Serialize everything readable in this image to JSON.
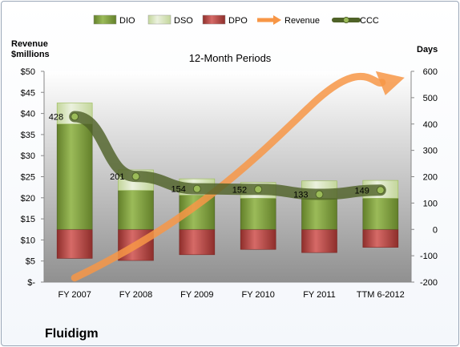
{
  "company": "Fluidigm",
  "chart_data": {
    "type": "bar",
    "title": "12-Month Periods",
    "ylabel_left": [
      "Revenue",
      "$millions"
    ],
    "ylabel_right": "Days",
    "categories": [
      "FY 2007",
      "FY 2008",
      "FY 2009",
      "FY 2010",
      "FY 2011",
      "TTM 6-2012"
    ],
    "left_axis": {
      "ylim": [
        0,
        50
      ],
      "ticks": [
        0,
        5,
        10,
        15,
        20,
        25,
        30,
        35,
        40,
        45,
        50
      ],
      "tick_labels": [
        "$-",
        "$5",
        "$10",
        "$15",
        "$20",
        "$25",
        "$30",
        "$35",
        "$40",
        "$45",
        "$50"
      ]
    },
    "right_axis": {
      "ylim": [
        -200,
        600
      ],
      "ticks": [
        -200,
        -100,
        0,
        100,
        200,
        300,
        400,
        500,
        600
      ],
      "tick_labels": [
        "-200",
        "-100",
        "0",
        "100",
        "200",
        "300",
        "400",
        "500",
        "600"
      ]
    },
    "legend": {
      "placement": "top",
      "entries": [
        {
          "name": "DIO",
          "color": "#77933c"
        },
        {
          "name": "DSO",
          "color": "#d7e4bd"
        },
        {
          "name": "DPO",
          "color": "#c0504d"
        },
        {
          "name": "Revenue",
          "color": "#f79646"
        },
        {
          "name": "CCC",
          "color": "#4f6228"
        }
      ]
    },
    "series": [
      {
        "name": "DIO",
        "axis": "right",
        "values": [
          400,
          148,
          130,
          118,
          118,
          118
        ]
      },
      {
        "name": "DSO",
        "axis": "right",
        "values": [
          80,
          78,
          62,
          60,
          66,
          68
        ]
      },
      {
        "name": "DPO",
        "axis": "right",
        "values": [
          -110,
          -118,
          -96,
          -76,
          -88,
          -68
        ]
      },
      {
        "name": "CCC",
        "axis": "right",
        "values": [
          428,
          201,
          154,
          152,
          133,
          149
        ],
        "labels": [
          "428",
          "201",
          "154",
          "152",
          "133",
          "149"
        ]
      },
      {
        "name": "Revenue",
        "axis": "left",
        "trend_from": 1,
        "trend_to": 48.5
      }
    ],
    "grid": false
  }
}
